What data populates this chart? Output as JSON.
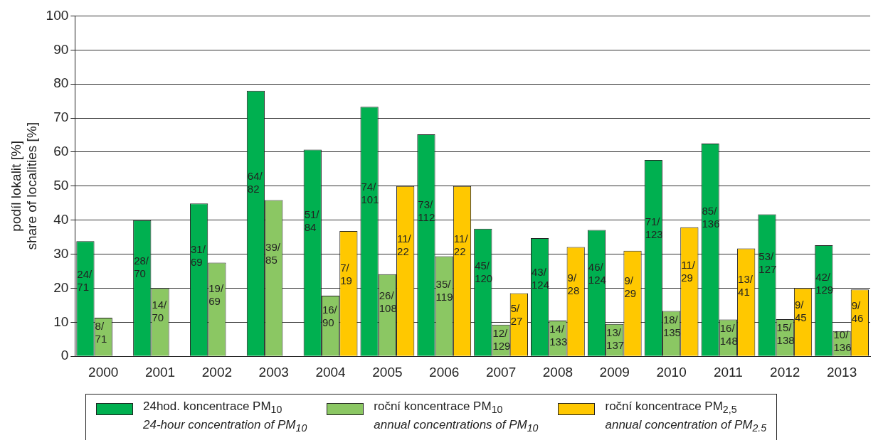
{
  "chart_data": {
    "type": "bar",
    "ylabel": "podíl lokalit [%]\nshare of localities [%]",
    "categories": [
      "2000",
      "2001",
      "2002",
      "2003",
      "2004",
      "2005",
      "2006",
      "2007",
      "2008",
      "2009",
      "2010",
      "2011",
      "2012",
      "2013"
    ],
    "ylim": [
      0,
      100
    ],
    "yticks": [
      0,
      10,
      20,
      30,
      40,
      50,
      60,
      70,
      80,
      90,
      100
    ],
    "grid": "y",
    "legend": "bottom",
    "series": [
      {
        "name": "24hod. koncentrace PM$_{10}$\n24-hour concentration of PM$_{10}$",
        "color": "#00b050",
        "values": [
          33.8,
          40,
          44.9,
          78,
          60.7,
          73.3,
          65.2,
          37.5,
          34.7,
          37.1,
          57.7,
          62.5,
          41.7,
          32.6
        ],
        "value_labels": [
          "24/71",
          "28/70",
          "31/69",
          "64/82",
          "51/84",
          "74/101",
          "73/112",
          "45/120",
          "43/124",
          "46/124",
          "71/123",
          "85/136",
          "53/127",
          "42/129"
        ]
      },
      {
        "name": "roční koncentrace PM$_{10}$\nannual concentrations of PM$_{10}$",
        "color": "#8bc763",
        "values": [
          11.3,
          20,
          27.5,
          45.9,
          17.8,
          24.1,
          29.4,
          9.3,
          10.5,
          9.5,
          13.3,
          10.8,
          10.9,
          7.4
        ],
        "value_labels": [
          "8/71",
          "14/70",
          "19/69",
          "39/85",
          "16/90",
          "26/108",
          "35/119",
          "12/129",
          "14/133",
          "13/137",
          "18/135",
          "16/148",
          "15/138",
          "10/136"
        ]
      },
      {
        "name": "roční koncentrace PM$_{2,5}$\nannual concentration of PM$_{2.5}$",
        "color": "#ffc800",
        "values": [
          null,
          null,
          null,
          null,
          36.8,
          50,
          50,
          18.5,
          32.1,
          31,
          37.9,
          31.7,
          20,
          19.6
        ],
        "value_labels": [
          null,
          null,
          null,
          null,
          "7/19",
          "11/22",
          "11/22",
          "5/27",
          "9/28",
          "9/29",
          "11/29",
          "13/41",
          "9/45",
          "9/46"
        ]
      }
    ]
  }
}
